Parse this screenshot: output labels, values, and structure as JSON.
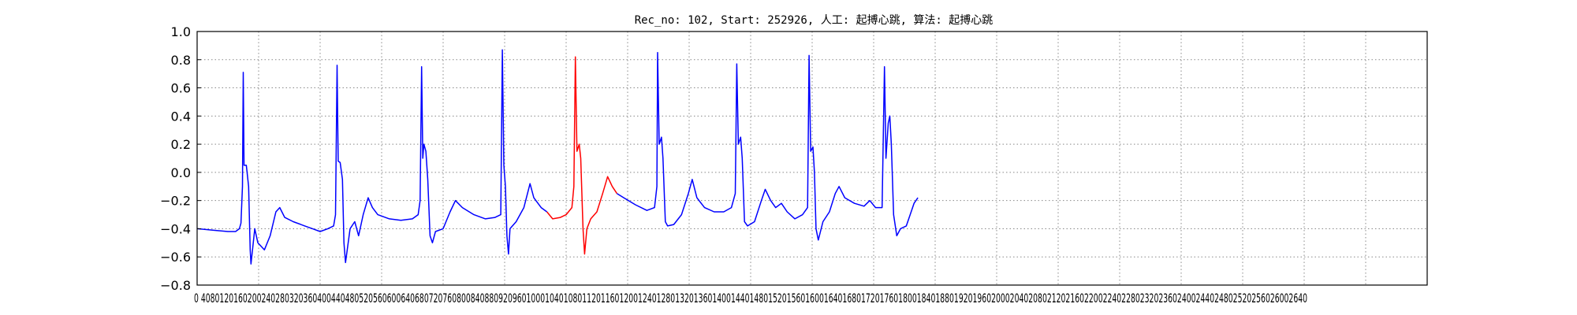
{
  "chart_data": {
    "type": "line",
    "title": "Rec_no: 102, Start: 252926, 人工: 起搏心跳, 算法: 起搏心跳",
    "xlabel": "",
    "ylabel": "",
    "xlim": [
      0,
      3200
    ],
    "ylim": [
      -0.8,
      1.0
    ],
    "grid": true,
    "x_tick_labels": [
      "0",
      "40",
      "80",
      "120",
      "160",
      "200",
      "240",
      "280",
      "320",
      "360",
      "400",
      "440",
      "480",
      "520",
      "560",
      "600",
      "640",
      "680",
      "720",
      "760",
      "800",
      "840",
      "880",
      "920",
      "960",
      "1000",
      "1040",
      "1080",
      "1120",
      "1160",
      "1200",
      "1240",
      "1280",
      "1320",
      "1360",
      "1400",
      "1440",
      "1480",
      "1520",
      "1560",
      "1600",
      "1640",
      "1680",
      "1720",
      "1760",
      "1800",
      "1840",
      "1880",
      "1920",
      "1960",
      "2000",
      "2040",
      "2080",
      "2120",
      "2160",
      "2200",
      "2240",
      "2280",
      "2320",
      "2360",
      "2400",
      "2440",
      "2480",
      "2520",
      "2560",
      "2600"
    ],
    "x_tick_labels_display": "0 4080120160200240280320360400440480520560600640680720760800840880920960100010401080112011601200124012801320136014001440148015201560160016401680172017601800184018801920196020002040208021202160220022402280232023602400244024802520256026002640",
    "y_ticks": [
      1.0,
      0.8,
      0.6,
      0.4,
      0.2,
      0.0,
      -0.2,
      -0.4,
      -0.6,
      -0.8
    ],
    "y_tick_labels": [
      "1.0",
      "0.8",
      "0.6",
      "0.4",
      "0.2",
      "0.0",
      "−0.2",
      "−0.4",
      "−0.6",
      "−0.8"
    ],
    "series": [
      {
        "color": "#0000ff",
        "points": [
          [
            0,
            -0.4
          ],
          [
            40,
            -0.41
          ],
          [
            80,
            -0.42
          ],
          [
            100,
            -0.42
          ],
          [
            110,
            -0.4
          ],
          [
            114,
            -0.36
          ],
          [
            118,
            -0.1
          ],
          [
            120,
            0.71
          ],
          [
            122,
            0.05
          ],
          [
            128,
            0.05
          ],
          [
            134,
            -0.1
          ],
          [
            138,
            -0.55
          ],
          [
            140,
            -0.65
          ],
          [
            146,
            -0.5
          ],
          [
            150,
            -0.4
          ],
          [
            158,
            -0.5
          ],
          [
            175,
            -0.55
          ],
          [
            190,
            -0.45
          ],
          [
            205,
            -0.28
          ],
          [
            215,
            -0.25
          ],
          [
            228,
            -0.32
          ],
          [
            250,
            -0.35
          ],
          [
            280,
            -0.38
          ],
          [
            300,
            -0.4
          ],
          [
            320,
            -0.42
          ],
          [
            340,
            -0.4
          ],
          [
            355,
            -0.38
          ],
          [
            360,
            -0.3
          ],
          [
            364,
            0.76
          ],
          [
            367,
            0.08
          ],
          [
            372,
            0.07
          ],
          [
            378,
            -0.05
          ],
          [
            382,
            -0.5
          ],
          [
            386,
            -0.64
          ],
          [
            392,
            -0.52
          ],
          [
            398,
            -0.4
          ],
          [
            410,
            -0.35
          ],
          [
            420,
            -0.45
          ],
          [
            432,
            -0.3
          ],
          [
            445,
            -0.18
          ],
          [
            456,
            -0.25
          ],
          [
            470,
            -0.3
          ],
          [
            500,
            -0.33
          ],
          [
            530,
            -0.34
          ],
          [
            560,
            -0.33
          ],
          [
            575,
            -0.3
          ],
          [
            580,
            -0.2
          ],
          [
            584,
            0.75
          ],
          [
            587,
            0.1
          ],
          [
            590,
            0.2
          ],
          [
            595,
            0.15
          ],
          [
            600,
            -0.05
          ],
          [
            606,
            -0.45
          ],
          [
            612,
            -0.5
          ],
          [
            620,
            -0.42
          ],
          [
            640,
            -0.4
          ],
          [
            658,
            -0.28
          ],
          [
            672,
            -0.2
          ],
          [
            690,
            -0.25
          ],
          [
            720,
            -0.3
          ],
          [
            750,
            -0.33
          ],
          [
            775,
            -0.32
          ],
          [
            790,
            -0.3
          ],
          [
            794,
            0.87
          ],
          [
            798,
            0.05
          ],
          [
            802,
            -0.1
          ],
          [
            806,
            -0.45
          ],
          [
            810,
            -0.58
          ],
          [
            814,
            -0.4
          ],
          [
            830,
            -0.35
          ],
          [
            850,
            -0.25
          ],
          [
            866,
            -0.08
          ],
          [
            876,
            -0.18
          ],
          [
            895,
            -0.25
          ],
          [
            910,
            -0.28
          ]
        ]
      },
      {
        "color": "#ff0000",
        "points": [
          [
            910,
            -0.28
          ],
          [
            925,
            -0.33
          ],
          [
            945,
            -0.32
          ],
          [
            960,
            -0.3
          ],
          [
            975,
            -0.25
          ],
          [
            980,
            -0.1
          ],
          [
            984,
            0.82
          ],
          [
            988,
            0.15
          ],
          [
            994,
            0.2
          ],
          [
            998,
            0.1
          ],
          [
            1004,
            -0.4
          ],
          [
            1008,
            -0.58
          ],
          [
            1014,
            -0.4
          ],
          [
            1024,
            -0.33
          ],
          [
            1040,
            -0.28
          ],
          [
            1055,
            -0.15
          ],
          [
            1068,
            -0.03
          ],
          [
            1080,
            -0.1
          ],
          [
            1092,
            -0.15
          ]
        ]
      },
      {
        "color": "#0000ff",
        "points": [
          [
            1092,
            -0.15
          ],
          [
            1110,
            -0.18
          ],
          [
            1140,
            -0.23
          ],
          [
            1170,
            -0.27
          ],
          [
            1190,
            -0.25
          ],
          [
            1196,
            -0.1
          ],
          [
            1198,
            0.85
          ],
          [
            1202,
            0.2
          ],
          [
            1208,
            0.25
          ],
          [
            1212,
            0.1
          ],
          [
            1218,
            -0.35
          ],
          [
            1224,
            -0.38
          ],
          [
            1240,
            -0.37
          ],
          [
            1260,
            -0.3
          ],
          [
            1278,
            -0.15
          ],
          [
            1288,
            -0.05
          ],
          [
            1300,
            -0.18
          ],
          [
            1320,
            -0.25
          ],
          [
            1345,
            -0.28
          ],
          [
            1370,
            -0.28
          ],
          [
            1390,
            -0.25
          ],
          [
            1400,
            -0.15
          ],
          [
            1404,
            0.77
          ],
          [
            1408,
            0.2
          ],
          [
            1414,
            0.25
          ],
          [
            1418,
            0.1
          ],
          [
            1424,
            -0.35
          ],
          [
            1432,
            -0.38
          ],
          [
            1450,
            -0.35
          ],
          [
            1468,
            -0.2
          ],
          [
            1478,
            -0.12
          ],
          [
            1492,
            -0.2
          ],
          [
            1505,
            -0.25
          ],
          [
            1520,
            -0.22
          ],
          [
            1535,
            -0.28
          ],
          [
            1555,
            -0.33
          ],
          [
            1575,
            -0.3
          ],
          [
            1588,
            -0.25
          ],
          [
            1592,
            0.83
          ],
          [
            1596,
            0.15
          ],
          [
            1602,
            0.18
          ],
          [
            1606,
            0.0
          ],
          [
            1610,
            -0.4
          ],
          [
            1616,
            -0.48
          ],
          [
            1628,
            -0.35
          ],
          [
            1645,
            -0.28
          ],
          [
            1660,
            -0.15
          ],
          [
            1670,
            -0.1
          ],
          [
            1685,
            -0.18
          ],
          [
            1710,
            -0.22
          ],
          [
            1735,
            -0.24
          ],
          [
            1750,
            -0.2
          ],
          [
            1765,
            -0.25
          ],
          [
            1782,
            -0.25
          ],
          [
            1788,
            0.75
          ],
          [
            1792,
            0.1
          ],
          [
            1798,
            0.35
          ],
          [
            1802,
            0.4
          ],
          [
            1806,
            0.2
          ],
          [
            1812,
            -0.3
          ],
          [
            1820,
            -0.45
          ],
          [
            1830,
            -0.4
          ],
          [
            1845,
            -0.38
          ],
          [
            1855,
            -0.3
          ],
          [
            1865,
            -0.22
          ],
          [
            1875,
            -0.18
          ]
        ]
      }
    ]
  }
}
